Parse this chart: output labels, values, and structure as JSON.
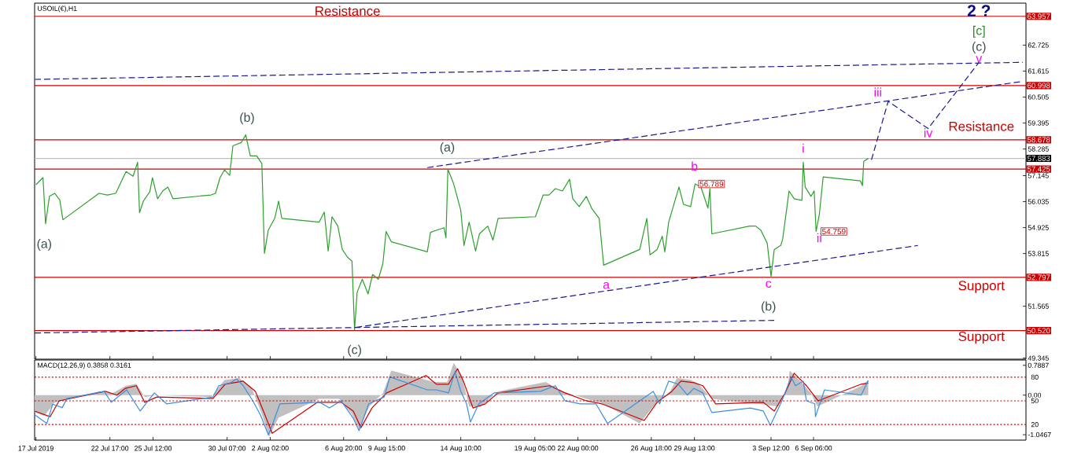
{
  "chart_data": [
    {
      "type": "line",
      "title": "USOIL(€),H1",
      "xlim": [
        "2019-07-17T20:00",
        "2019-09-20T00:00"
      ],
      "ylim": [
        49.3,
        64.52
      ],
      "tick_labels": "y",
      "xticks": [
        {
          "value": "2019-07-17T22:00",
          "label": null
        },
        {
          "value": "2019-07-22T17:00",
          "label": null
        },
        {
          "value": "2019-07-25T12:00",
          "label": null
        },
        {
          "value": "2019-07-30T07:00",
          "label": null
        },
        {
          "value": "2019-08-02T02:00",
          "label": null
        },
        {
          "value": "2019-08-06T20:00",
          "label": null
        },
        {
          "value": "2019-08-09T15:00",
          "label": null
        },
        {
          "value": "2019-08-14T10:00",
          "label": null
        },
        {
          "value": "2019-08-19T05:00",
          "label": null
        },
        {
          "value": "2019-08-22T00:00",
          "label": null
        },
        {
          "value": "2019-08-26T18:00",
          "label": null
        },
        {
          "value": "2019-08-29T13:00",
          "label": null
        },
        {
          "value": "2019-09-03T12:00",
          "label": null
        },
        {
          "value": "2019-09-06T06:00",
          "label": null
        }
      ],
      "yticks": [
        62.725,
        61.615,
        60.505,
        59.395,
        58.285,
        57.145,
        56.035,
        54.925,
        53.815,
        51.565,
        49.345
      ],
      "series": [
        {
          "color": "#2ca02c",
          "x": [
            "2019-07-17T22:00",
            "2019-07-18T09:00",
            "2019-07-18T13:00",
            "2019-07-18T19:00",
            "2019-07-19T03:00",
            "2019-07-19T11:00",
            "2019-07-19T16:00",
            "2019-07-22T00:00",
            "2019-07-22T13:00",
            "2019-07-23T02:00",
            "2019-07-23T18:00",
            "2019-07-24T05:00",
            "2019-07-24T12:00",
            "2019-07-24T15:00",
            "2019-07-24T21:00",
            "2019-07-25T07:00",
            "2019-07-25T11:00",
            "2019-07-25T19:00",
            "2019-07-26T03:00",
            "2019-07-26T11:00",
            "2019-07-26T19:00",
            "2019-07-29T06:00",
            "2019-07-29T13:00",
            "2019-07-29T20:00",
            "2019-07-30T03:00",
            "2019-07-30T11:00",
            "2019-07-30T16:00",
            "2019-07-31T05:00",
            "2019-07-31T12:00",
            "2019-07-31T19:00",
            "2019-08-01T05:00",
            "2019-08-01T13:00",
            "2019-08-01T17:00",
            "2019-08-01T23:00",
            "2019-08-02T09:00",
            "2019-08-02T15:00",
            "2019-08-02T20:00",
            "2019-08-05T06:00",
            "2019-08-05T14:00",
            "2019-08-05T20:00",
            "2019-08-06T02:00",
            "2019-08-06T11:00",
            "2019-08-06T18:00",
            "2019-08-07T02:00",
            "2019-08-07T09:00",
            "2019-08-07T13:00",
            "2019-08-07T17:00",
            "2019-08-08T01:00",
            "2019-08-08T10:00",
            "2019-08-08T17:00",
            "2019-08-09T02:00",
            "2019-08-09T09:00",
            "2019-08-09T14:00",
            "2019-08-09T22:00",
            "2019-08-12T06:00",
            "2019-08-12T11:00",
            "2019-08-12T21:00",
            "2019-08-13T08:00",
            "2019-08-13T11:00",
            "2019-08-13T14:00",
            "2019-08-13T23:00",
            "2019-08-14T10:00",
            "2019-08-14T15:00",
            "2019-08-14T23:00",
            "2019-08-15T09:00",
            "2019-08-15T15:00",
            "2019-08-16T04:00",
            "2019-08-16T12:00",
            "2019-08-16T20:00",
            "2019-08-19T06:00",
            "2019-08-19T18:00",
            "2019-08-20T03:00",
            "2019-08-20T13:00",
            "2019-08-21T00:00",
            "2019-08-21T11:00",
            "2019-08-21T16:00",
            "2019-08-22T02:00",
            "2019-08-22T13:00",
            "2019-08-22T22:00",
            "2019-08-23T09:00",
            "2019-08-23T16:00",
            "2019-08-26T00:00",
            "2019-08-26T11:00",
            "2019-08-26T16:00",
            "2019-08-27T03:00",
            "2019-08-27T11:00",
            "2019-08-27T15:00",
            "2019-08-27T21:00",
            "2019-08-28T13:00",
            "2019-08-28T20:00",
            "2019-08-29T07:00",
            "2019-08-29T14:00",
            "2019-08-29T23:00",
            "2019-08-30T10:00",
            "2019-08-30T13:00",
            "2019-08-30T16:00",
            "2019-09-02T03:00",
            "2019-09-02T12:00",
            "2019-09-02T20:00",
            "2019-09-03T06:00",
            "2019-09-03T12:00",
            "2019-09-03T17:00",
            "2019-09-04T03:00",
            "2019-09-04T06:00",
            "2019-09-04T16:00",
            "2019-09-05T00:00",
            "2019-09-05T12:00",
            "2019-09-05T14:00",
            "2019-09-05T17:00",
            "2019-09-06T02:00",
            "2019-09-06T07:00",
            "2019-09-06T10:00",
            "2019-09-06T15:00",
            "2019-09-06T21:00",
            "2019-09-09T07:00",
            "2019-09-09T10:00",
            "2019-09-09T12:00",
            "2019-09-09T19:00"
          ],
          "values": [
            56.76,
            57.06,
            55.09,
            56.26,
            56.39,
            56.12,
            55.26,
            56.39,
            56.32,
            56.39,
            57.32,
            57.12,
            57.72,
            55.56,
            56.06,
            56.46,
            57.06,
            56.16,
            56.49,
            56.66,
            56.16,
            56.32,
            56.39,
            57.06,
            57.39,
            57.16,
            58.42,
            58.56,
            58.89,
            57.99,
            57.99,
            57.66,
            53.82,
            54.82,
            55.32,
            56.06,
            55.32,
            55.16,
            55.59,
            53.92,
            55.39,
            54.99,
            53.99,
            53.66,
            53.49,
            50.55,
            52.16,
            52.72,
            52.09,
            52.92,
            52.72,
            53.39,
            54.76,
            54.32,
            53.89,
            54.72,
            54.82,
            54.92,
            54.49,
            57.42,
            56.79,
            55.66,
            54.16,
            55.16,
            53.92,
            54.66,
            54.99,
            54.39,
            55.32,
            55.39,
            56.32,
            56.32,
            56.59,
            56.49,
            56.99,
            56.16,
            55.82,
            56.26,
            55.72,
            55.32,
            53.32,
            53.99,
            55.32,
            53.76,
            53.99,
            54.56,
            53.89,
            55.16,
            56.66,
            55.92,
            55.82,
            56.79,
            56.66,
            55.76,
            56.59,
            54.66,
            54.99,
            54.99,
            54.82,
            54.26,
            52.85,
            53.99,
            54.16,
            54.42,
            56.49,
            56.16,
            56.09,
            57.72,
            56.66,
            56.26,
            56.49,
            54.76,
            55.49,
            57.09,
            56.92,
            56.72,
            57.76,
            57.88
          ]
        },
        {
          "color": "#1a1a8c",
          "line_style": "dashed",
          "x": [
            "2019-07-17T20:00",
            "2019-09-19T19:00"
          ],
          "values": [
            61.26,
            61.99
          ]
        },
        {
          "color": "#1a1a8c",
          "line_style": "dashed",
          "x": [
            "2019-08-12T06:00",
            "2019-09-19T15:00"
          ],
          "values": [
            57.49,
            61.16
          ]
        },
        {
          "color": "#1a1a8c",
          "line_style": "dashed",
          "x": [
            "2019-08-07T15:00",
            "2019-09-13T00:00"
          ],
          "values": [
            50.66,
            54.16
          ]
        },
        {
          "color": "#1a1a8c",
          "line_style": "dashed",
          "x": [
            "2019-07-17T20:00",
            "2019-09-03T17:00"
          ],
          "values": [
            50.42,
            50.96
          ]
        },
        {
          "color": "#1a1a8c",
          "line_style": "dashed",
          "x": [
            "2019-09-10T00:00",
            "2019-09-11T02:00",
            "2019-09-13T16:00",
            "2019-09-16T23:00"
          ],
          "values": [
            57.82,
            60.32,
            59.16,
            61.99
          ]
        }
      ],
      "ref_lines": [
        {
          "axis": "y",
          "value": 63.957,
          "label": "63.957",
          "color": "#cc0000"
        },
        {
          "axis": "y",
          "value": 60.998,
          "label": "60.998",
          "color": "#cc0000"
        },
        {
          "axis": "y",
          "value": 58.678,
          "label": "58.678",
          "color": "#cc0000"
        },
        {
          "axis": "y",
          "value": 57.883,
          "label": "57.883",
          "color": "#c0c0c0"
        },
        {
          "axis": "y",
          "value": 57.425,
          "label": "57.425",
          "color": "#cc0000"
        },
        {
          "axis": "y",
          "value": 52.797,
          "label": "52.797",
          "color": "#cc0000"
        },
        {
          "axis": "y",
          "value": 50.52,
          "label": "50.520",
          "color": "#cc0000"
        }
      ],
      "annotations": [
        "Resistance",
        "Resistance",
        "Support",
        "Support",
        "(b)",
        "(a)",
        "(a)",
        "(c)",
        "b",
        "a",
        "c",
        "(b)",
        "i",
        "ii",
        "iii",
        "iv",
        "v",
        "(c)",
        "[c]",
        "2 ?",
        "56.789",
        "54.759"
      ]
    },
    {
      "type": "line",
      "title": "MACD(12,26,9) 0.3858 0.3161",
      "xlim": [
        "2019-07-17T20:00",
        "2019-09-20T00:00"
      ],
      "ylim": [
        -1.19,
        0.93
      ],
      "xticks": [
        {
          "value": "2019-07-17T22:00",
          "label": "17 Jul 2019"
        },
        {
          "value": "2019-07-22T17:00",
          "label": "22 Jul 17:00"
        },
        {
          "value": "2019-07-25T12:00",
          "label": "25 Jul 12:00"
        },
        {
          "value": "2019-07-30T07:00",
          "label": "30 Jul 07:00"
        },
        {
          "value": "2019-08-02T02:00",
          "label": "2 Aug 02:00"
        },
        {
          "value": "2019-08-06T20:00",
          "label": "6 Aug 20:00"
        },
        {
          "value": "2019-08-09T15:00",
          "label": "9 Aug 15:00"
        },
        {
          "value": "2019-08-14T10:00",
          "label": "14 Aug 10:00"
        },
        {
          "value": "2019-08-19T05:00",
          "label": "19 Aug 05:00"
        },
        {
          "value": "2019-08-22T00:00",
          "label": "22 Aug 00:00"
        },
        {
          "value": "2019-08-26T18:00",
          "label": "26 Aug 18:00"
        },
        {
          "value": "2019-08-29T13:00",
          "label": "29 Aug 13:00"
        },
        {
          "value": "2019-09-03T12:00",
          "label": "3 Sep 12:00"
        },
        {
          "value": "2019-09-06T06:00",
          "label": "6 Sep 06:00"
        }
      ],
      "yticks": [
        0.7887,
        {
          "value": 0,
          "label": "0.00"
        },
        -1.0467
      ],
      "y2lim": [
        0.2,
        101.8
      ],
      "y2ticks": [
        80,
        50,
        20
      ],
      "series": [
        {
          "type": "area",
          "color": "#c0c0c0",
          "x": [
            "2019-07-17T20:00",
            "2019-07-18T11:00",
            "2019-07-19T03:00",
            "2019-07-22T00:00",
            "2019-07-22T21:00",
            "2019-07-23T18:00",
            "2019-07-24T10:00",
            "2019-07-24T23:00",
            "2019-07-25T17:00",
            "2019-07-29T06:00",
            "2019-07-30T03:00",
            "2019-07-31T02:00",
            "2019-07-31T21:00",
            "2019-08-01T13:00",
            "2019-08-02T00:00",
            "2019-08-02T15:00",
            "2019-08-05T06:00",
            "2019-08-06T13:00",
            "2019-08-07T09:00",
            "2019-08-07T20:00",
            "2019-08-08T12:00",
            "2019-08-09T09:00",
            "2019-08-09T22:00",
            "2019-08-12T16:00",
            "2019-08-13T13:00",
            "2019-08-13T23:00",
            "2019-08-14T12:00",
            "2019-08-14T23:00",
            "2019-08-15T17:00",
            "2019-08-16T20:00",
            "2019-08-19T22:00",
            "2019-08-21T00:00",
            "2019-08-22T13:00",
            "2019-08-23T11:00",
            "2019-08-26T00:00",
            "2019-08-26T21:00",
            "2019-08-27T23:00",
            "2019-08-28T10:00",
            "2019-08-29T07:00",
            "2019-08-29T19:00",
            "2019-08-30T16:00",
            "2019-09-03T01:00",
            "2019-09-03T23:00",
            "2019-09-04T14:00",
            "2019-09-04T17:00",
            "2019-09-05T08:00",
            "2019-09-06T02:00",
            "2019-09-06T12:00",
            "2019-09-09T09:00",
            "2019-09-09T19:00"
          ],
          "values": [
            -0.45,
            -0.55,
            -0.2,
            0.1,
            0.05,
            0.25,
            0.3,
            -0.05,
            0.0,
            -0.05,
            0.4,
            0.45,
            0.2,
            -0.5,
            -1.1,
            -0.6,
            -0.1,
            -0.1,
            -0.5,
            -0.9,
            -0.3,
            0.05,
            0.65,
            0.35,
            0.35,
            0.85,
            0.5,
            -0.3,
            -0.3,
            0.1,
            0.35,
            0.1,
            -0.1,
            -0.2,
            -0.75,
            -0.3,
            0.1,
            0.45,
            0.4,
            0.3,
            -0.1,
            -0.25,
            -0.3,
            0.2,
            0.65,
            0.4,
            0.05,
            -0.3,
            0.25,
            0.4
          ]
        },
        {
          "color": "#cc0000",
          "x": [
            "2019-07-17T20:00",
            "2019-07-18T20:00",
            "2019-07-19T10:00",
            "2019-07-22T10:00",
            "2019-07-23T04:00",
            "2019-07-23T17:00",
            "2019-07-24T10:00",
            "2019-07-24T23:00",
            "2019-07-25T18:00",
            "2019-07-29T09:00",
            "2019-07-30T04:00",
            "2019-07-31T08:00",
            "2019-08-01T03:00",
            "2019-08-01T18:00",
            "2019-08-02T05:00",
            "2019-08-05T03:00",
            "2019-08-06T16:00",
            "2019-08-07T11:00",
            "2019-08-07T23:00",
            "2019-08-08T16:00",
            "2019-08-09T15:00",
            "2019-08-12T04:00",
            "2019-08-12T20:00",
            "2019-08-13T15:00",
            "2019-08-14T05:00",
            "2019-08-14T15:00",
            "2019-08-15T05:00",
            "2019-08-16T00:00",
            "2019-08-16T20:00",
            "2019-08-20T04:00",
            "2019-08-21T04:00",
            "2019-08-22T13:00",
            "2019-08-23T13:00",
            "2019-08-26T07:00",
            "2019-08-27T03:00",
            "2019-08-28T02:00",
            "2019-08-28T16:00",
            "2019-08-29T12:00",
            "2019-08-30T02:00",
            "2019-08-30T22:00",
            "2019-09-03T00:00",
            "2019-09-03T17:00",
            "2019-09-04T10:00",
            "2019-09-05T00:00",
            "2019-09-05T19:00",
            "2019-09-06T13:00",
            "2019-09-09T08:00",
            "2019-09-09T19:00"
          ],
          "values": [
            -0.42,
            -0.57,
            -0.15,
            0.1,
            0.0,
            0.18,
            0.25,
            -0.19,
            -0.05,
            -0.09,
            0.29,
            0.37,
            0.1,
            -0.53,
            -1.01,
            -0.19,
            -0.19,
            -0.42,
            -0.86,
            -0.34,
            0.06,
            0.52,
            0.29,
            0.29,
            0.7,
            0.33,
            -0.34,
            -0.23,
            0.06,
            0.25,
            0.06,
            -0.15,
            -0.23,
            -0.67,
            -0.19,
            0.1,
            0.37,
            0.33,
            0.25,
            -0.23,
            -0.19,
            -0.42,
            0.06,
            0.58,
            0.25,
            -0.15,
            0.29,
            0.32
          ]
        },
        {
          "color": "#3a8ee6",
          "x": [
            "2019-07-17T20:00",
            "2019-07-18T15:00",
            "2019-07-19T00:00",
            "2019-07-19T15:00",
            "2019-07-19T22:00",
            "2019-07-22T08:00",
            "2019-07-22T19:00",
            "2019-07-23T19:00",
            "2019-07-24T16:00",
            "2019-07-25T14:00",
            "2019-07-26T09:00",
            "2019-07-29T09:00",
            "2019-07-29T18:00",
            "2019-07-30T13:00",
            "2019-07-30T22:00",
            "2019-07-31T08:00",
            "2019-07-31T23:00",
            "2019-08-01T11:00",
            "2019-08-01T23:00",
            "2019-08-02T05:00",
            "2019-08-02T17:00",
            "2019-08-05T07:00",
            "2019-08-05T22:00",
            "2019-08-06T16:00",
            "2019-08-07T11:00",
            "2019-08-07T20:00",
            "2019-08-08T11:00",
            "2019-08-09T11:00",
            "2019-08-09T20:00",
            "2019-08-12T06:00",
            "2019-08-12T20:00",
            "2019-08-13T15:00",
            "2019-08-14T01:00",
            "2019-08-14T10:00",
            "2019-08-14T19:00",
            "2019-08-15T01:00",
            "2019-08-15T14:00",
            "2019-08-16T14:00",
            "2019-08-19T14:00",
            "2019-08-20T13:00",
            "2019-08-21T04:00",
            "2019-08-22T04:00",
            "2019-08-23T04:00",
            "2019-08-23T22:00",
            "2019-08-26T21:00",
            "2019-08-27T07:00",
            "2019-08-27T21:00",
            "2019-08-28T12:00",
            "2019-08-29T02:00",
            "2019-08-29T12:00",
            "2019-08-30T02:00",
            "2019-08-30T16:00",
            "2019-09-02T04:00",
            "2019-09-03T00:00",
            "2019-09-03T11:00",
            "2019-09-04T05:00",
            "2019-09-04T19:00",
            "2019-09-05T02:00",
            "2019-09-05T14:00",
            "2019-09-05T19:00",
            "2019-09-06T08:00",
            "2019-09-06T09:00",
            "2019-09-06T23:00",
            "2019-09-09T08:00",
            "2019-09-09T19:00"
          ],
          "values": [
            -0.52,
            -0.75,
            -0.24,
            -0.33,
            -0.09,
            0.1,
            -0.19,
            0.14,
            -0.42,
            0.06,
            -0.23,
            -0.05,
            0.25,
            0.33,
            0.43,
            0.25,
            -0.15,
            -0.53,
            -1.05,
            -0.8,
            -0.23,
            -0.19,
            -0.34,
            -0.15,
            -0.61,
            -0.94,
            -0.23,
            -0.05,
            0.48,
            0.14,
            0.14,
            0.06,
            0.62,
            0.1,
            -0.23,
            -0.71,
            -0.23,
            0.06,
            0.1,
            0.25,
            -0.15,
            -0.23,
            -0.23,
            -0.75,
            0.1,
            -0.23,
            0.37,
            0.29,
            0.0,
            0.18,
            0.06,
            -0.46,
            -0.34,
            -0.42,
            -0.8,
            -0.15,
            0.48,
            0.25,
            0.37,
            -0.15,
            -0.23,
            -0.57,
            0.14,
            0.0,
            0.39
          ]
        }
      ],
      "ref_lines": [
        {
          "axis": "y2",
          "value": 80,
          "color": "#cc0000",
          "line_style": "dotted"
        },
        {
          "axis": "y2",
          "value": 50,
          "color": "#cc0000",
          "line_style": "dotted"
        },
        {
          "axis": "y2",
          "value": 20,
          "color": "#cc0000",
          "line_style": "dotted"
        }
      ]
    }
  ]
}
